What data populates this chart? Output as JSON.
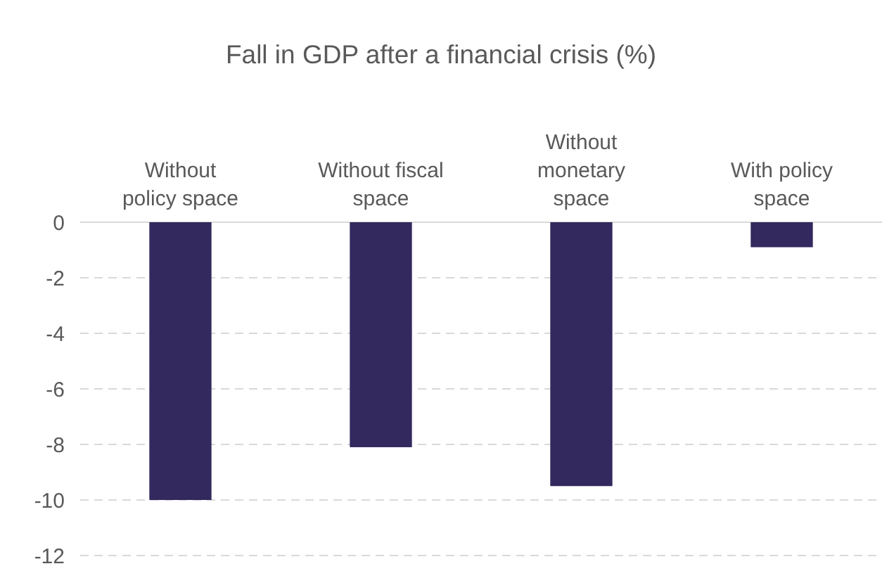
{
  "chart_data": {
    "type": "bar",
    "title": "Fall in GDP after a financial crisis (%)",
    "categories": [
      "Without policy space",
      "Without fiscal space",
      "Without monetary space",
      "With policy space"
    ],
    "values": [
      -10,
      -8.1,
      -9.5,
      -0.9
    ],
    "color": "#33295e",
    "ylim": [
      -12,
      0
    ],
    "yticks": [
      -12,
      -10,
      -8,
      -6,
      -4,
      -2,
      0
    ],
    "grid": "y"
  }
}
